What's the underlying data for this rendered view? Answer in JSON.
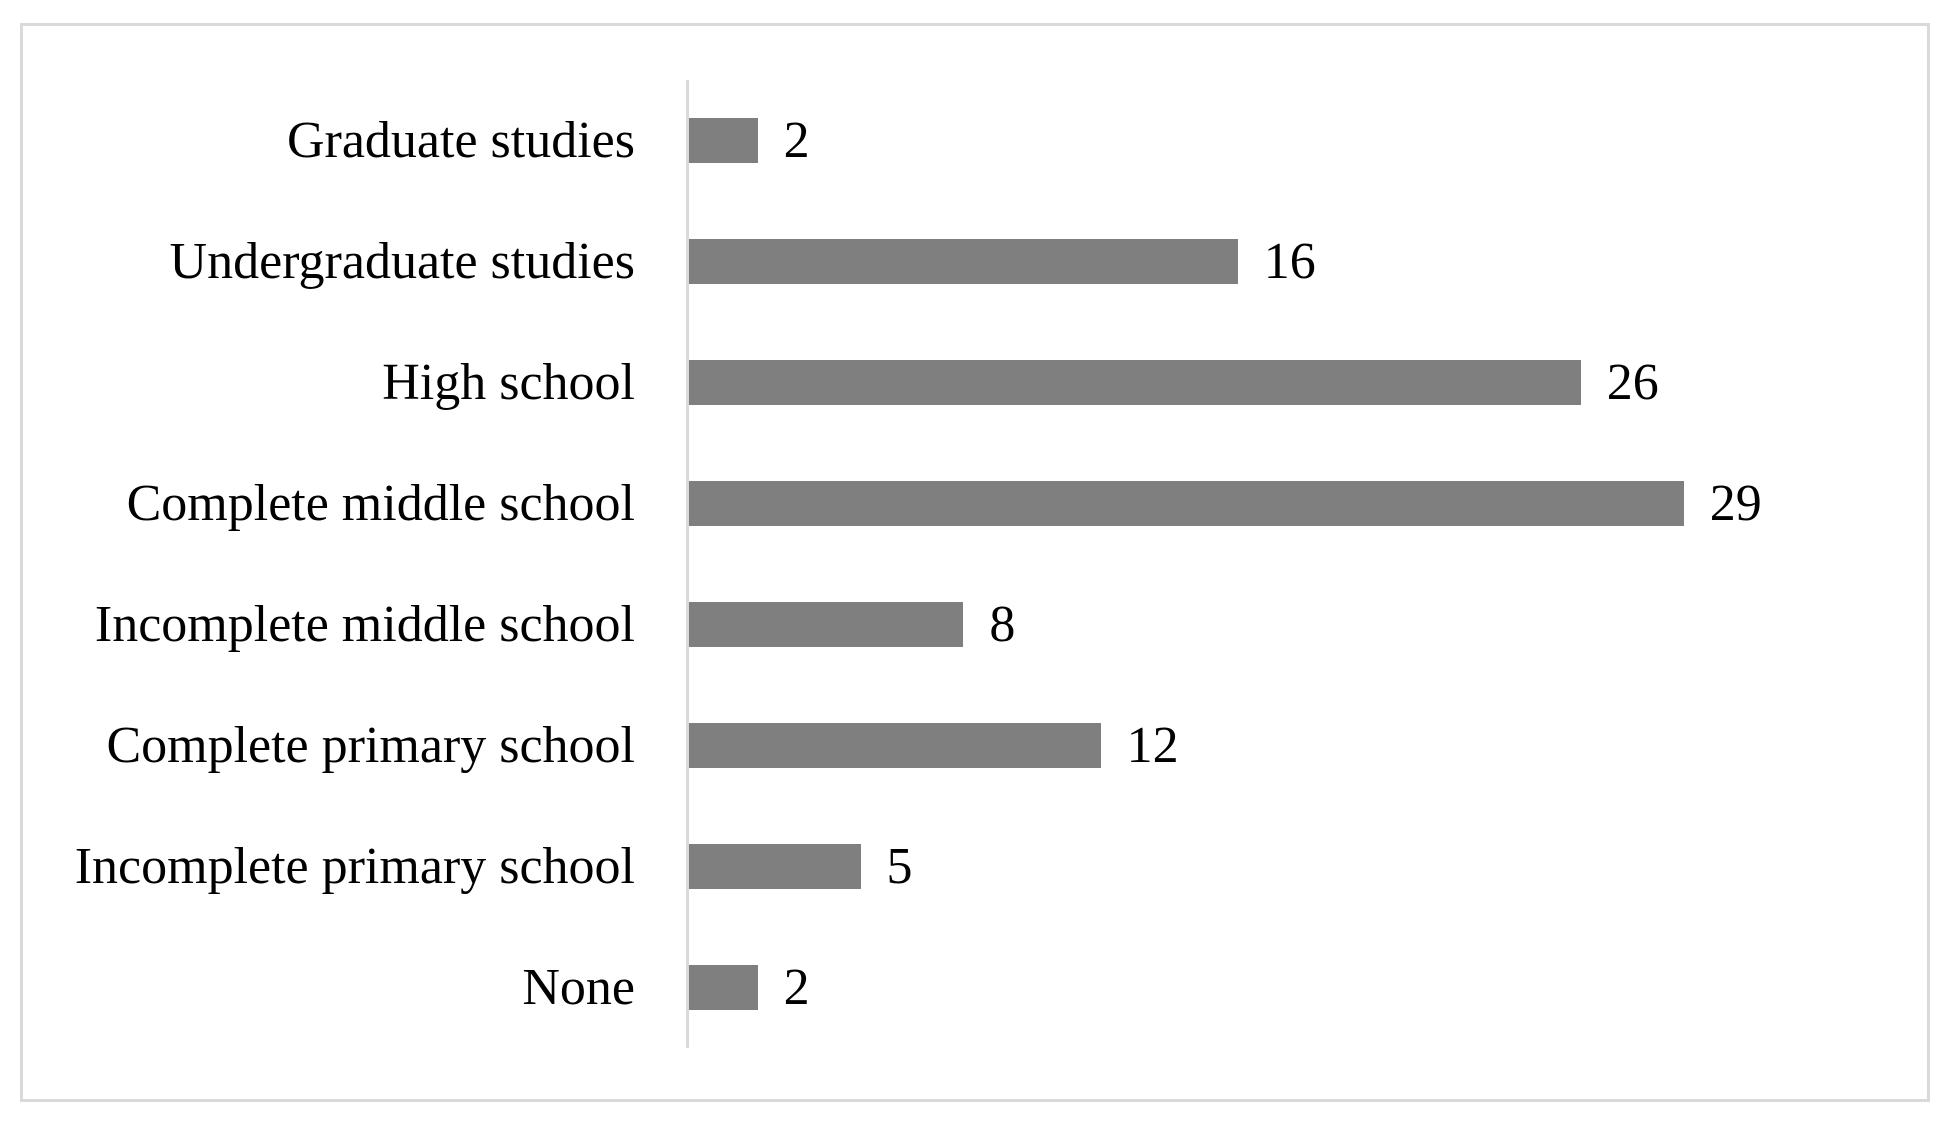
{
  "chart_data": {
    "type": "bar",
    "orientation": "horizontal",
    "title": "",
    "xlabel": "",
    "ylabel": "",
    "categories": [
      "Graduate studies",
      "Undergraduate studies",
      "High school",
      "Complete middle school",
      "Incomplete middle school",
      "Complete primary school",
      "Incomplete primary school",
      "None"
    ],
    "values": [
      2,
      16,
      26,
      29,
      8,
      12,
      5,
      2
    ],
    "data_labels": [
      "2",
      "16",
      "26",
      "29",
      "8",
      "12",
      "5",
      "2"
    ],
    "xlim": [
      0,
      35
    ],
    "grid": false,
    "legend": false,
    "bar_color": "#7f7f7f",
    "axis_line_color": "#d9d9d9",
    "panel_border_color": "#d9d9d9",
    "text_color": "#000000",
    "background_color": "#ffffff"
  }
}
